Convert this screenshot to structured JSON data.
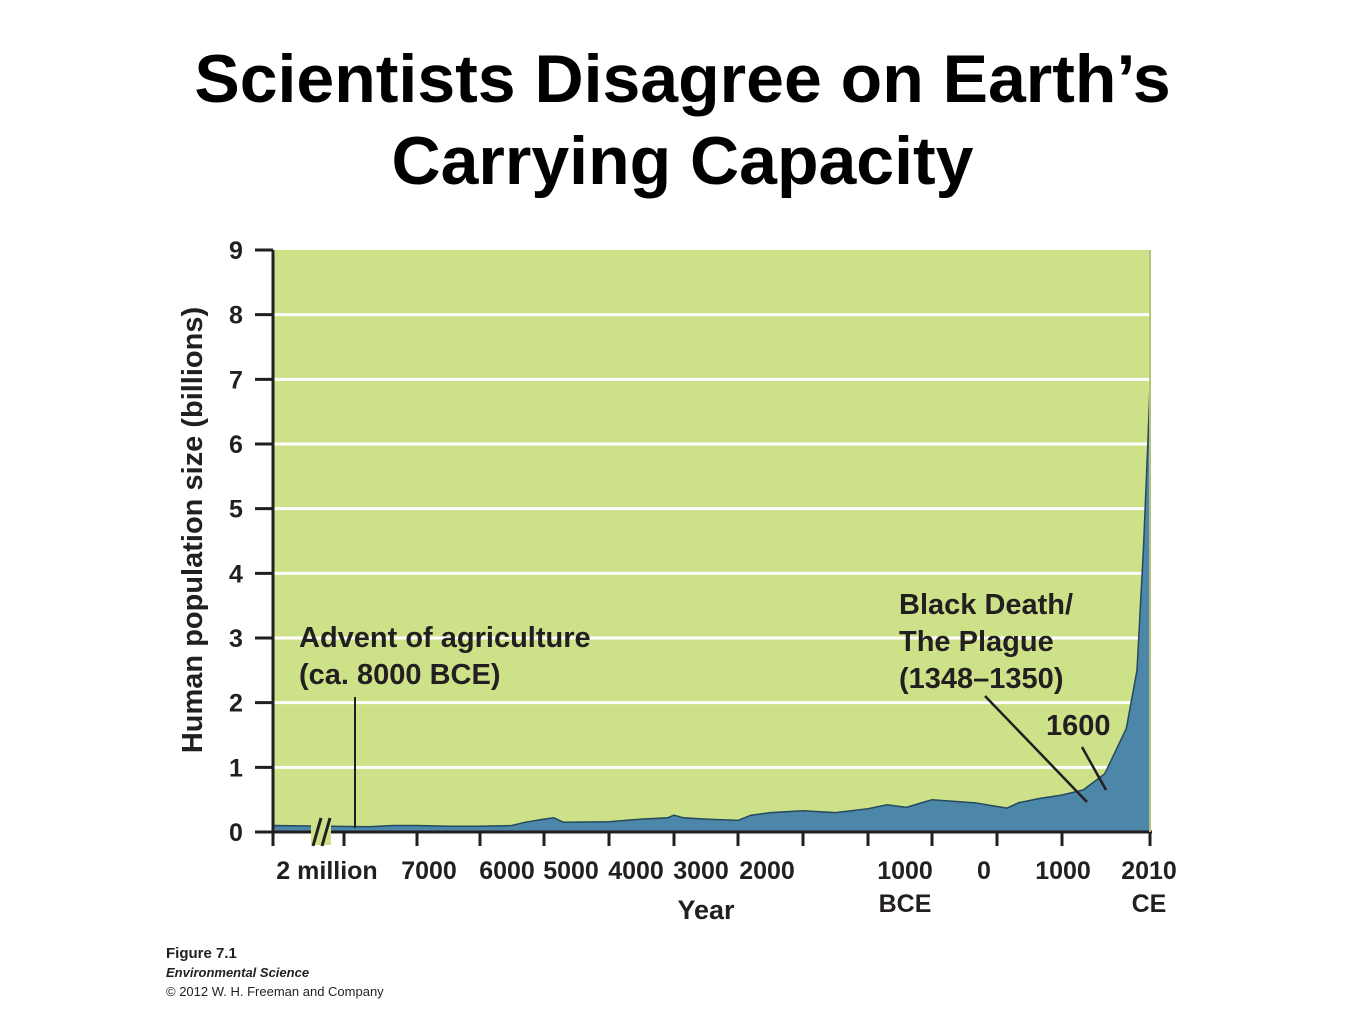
{
  "slide": {
    "title_line1": "Scientists Disagree on Earth’s",
    "title_line2": "Carrying Capacity"
  },
  "caption": {
    "figure": "Figure 7.1",
    "book": "Environmental Science",
    "copyright": "© 2012 W. H. Freeman and Company"
  },
  "colors": {
    "plot_background": "#cde188",
    "area_fill": "#4c86a8",
    "area_line": "#25495e",
    "gridline": "#ffffff",
    "axis": "#231f20"
  },
  "chart_data": {
    "type": "area",
    "title": "",
    "xlabel": "Year",
    "ylabel": "Human population size (billions)",
    "ylim": [
      0,
      9
    ],
    "y_ticks": [
      "0",
      "1",
      "2",
      "3",
      "4",
      "5",
      "6",
      "7",
      "8",
      "9"
    ],
    "grid": true,
    "x_axis_break": "//",
    "x_ticks": [
      {
        "label": "2 million",
        "year": -2000000
      },
      {
        "label": "7000",
        "year": -7000
      },
      {
        "label": "6000",
        "year": -6000
      },
      {
        "label": "5000",
        "year": -5000
      },
      {
        "label": "4000",
        "year": -4000
      },
      {
        "label": "3000",
        "year": -3000
      },
      {
        "label": "2000",
        "year": -2000
      },
      {
        "label": "1000",
        "sublabel": "BCE",
        "year": -1000
      },
      {
        "label": "0",
        "year": 0
      },
      {
        "label": "1000",
        "year": 1000
      },
      {
        "label": "2010",
        "sublabel": "CE",
        "year": 2010
      }
    ],
    "series": [
      {
        "points": [
          [
            -2000000,
            0.1
          ],
          [
            -8000,
            0.08
          ],
          [
            -7500,
            0.1
          ],
          [
            -7000,
            0.1
          ],
          [
            -6500,
            0.09
          ],
          [
            -6000,
            0.09
          ],
          [
            -5500,
            0.1
          ],
          [
            -5300,
            0.15
          ],
          [
            -5000,
            0.2
          ],
          [
            -4850,
            0.22
          ],
          [
            -4700,
            0.15
          ],
          [
            -4000,
            0.16
          ],
          [
            -3500,
            0.2
          ],
          [
            -3100,
            0.22
          ],
          [
            -3000,
            0.26
          ],
          [
            -2850,
            0.22
          ],
          [
            -2500,
            0.2
          ],
          [
            -2000,
            0.18
          ],
          [
            -1800,
            0.26
          ],
          [
            -1500,
            0.3
          ],
          [
            -1000,
            0.33
          ],
          [
            -500,
            0.3
          ],
          [
            0,
            0.36
          ],
          [
            300,
            0.42
          ],
          [
            600,
            0.38
          ],
          [
            800,
            0.44
          ],
          [
            1000,
            0.5
          ],
          [
            1200,
            0.45
          ],
          [
            1348,
            0.37
          ],
          [
            1400,
            0.45
          ],
          [
            1500,
            0.52
          ],
          [
            1600,
            0.57
          ],
          [
            1700,
            0.65
          ],
          [
            1800,
            0.9
          ],
          [
            1900,
            1.6
          ],
          [
            1950,
            2.5
          ],
          [
            1980,
            4.4
          ],
          [
            2000,
            6.0
          ],
          [
            2010,
            6.9
          ]
        ]
      }
    ],
    "annotations": [
      {
        "text_line1": "Advent of agriculture",
        "text_line2": "(ca. 8000 BCE)",
        "year": -8000
      },
      {
        "text_line1": "Black Death/",
        "text_line2": "The Plague",
        "text_line3": "(1348–1350)",
        "year": 1348
      },
      {
        "text_line1": "1600",
        "year": 1600
      }
    ]
  }
}
